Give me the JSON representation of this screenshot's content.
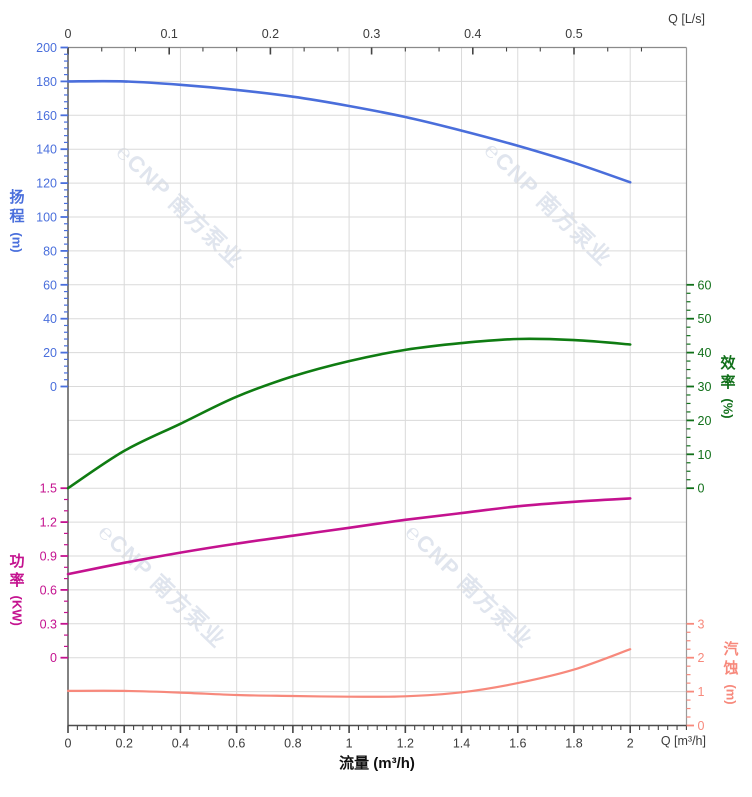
{
  "watermark": {
    "logo": "℮",
    "text": "CNP 南方泵业"
  },
  "chart_data": {
    "type": "line",
    "title": "",
    "x_label": "流量 (m³/h)",
    "x": [
      0,
      0.2,
      0.4,
      0.6,
      0.8,
      1.0,
      1.2,
      1.4,
      1.6,
      1.8,
      2.0
    ],
    "x_range_m3h": [
      0,
      2.2
    ],
    "grid": true,
    "axes": {
      "top": {
        "unit": "Q [L/s]",
        "tick_labels": [
          "0",
          "0.1",
          "0.2",
          "0.3",
          "0.4",
          "0.5"
        ],
        "range": [
          0,
          0.55
        ]
      },
      "bottom": {
        "unit": "Q [m³/h]",
        "title": "流量 (m³/h)",
        "tick_labels": [
          "0",
          "0.2",
          "0.4",
          "0.6",
          "0.8",
          "1",
          "1.2",
          "1.4",
          "1.6",
          "1.8",
          "2"
        ],
        "range": [
          0,
          2.2
        ]
      },
      "head": {
        "title": "扬程",
        "unit": "(m)",
        "color": "#4a6fdc",
        "range": [
          0,
          200
        ],
        "major_step": 20,
        "tick_labels": [
          "0",
          "20",
          "40",
          "60",
          "80",
          "100",
          "120",
          "140",
          "160",
          "180",
          "200"
        ]
      },
      "eff": {
        "title": "效率",
        "unit": "(%)",
        "color": "#11701a",
        "range": [
          0,
          60
        ],
        "major_step": 10,
        "tick_labels": [
          "0",
          "10",
          "20",
          "30",
          "40",
          "50",
          "60"
        ]
      },
      "power": {
        "title": "功率",
        "unit": "(KW)",
        "color": "#c4128f",
        "range": [
          0,
          1.5
        ],
        "major_step": 0.3,
        "tick_labels": [
          "0",
          "0.3",
          "0.6",
          "0.9",
          "1.2",
          "1.5"
        ]
      },
      "npsh": {
        "title": "汽蚀",
        "unit": "(m)",
        "color": "#f7897c",
        "range": [
          0,
          3
        ],
        "major_step": 1,
        "tick_labels": [
          "0",
          "1",
          "2",
          "3"
        ]
      }
    },
    "series": [
      {
        "name": "扬程",
        "axis": "head",
        "color": "#4a6edb",
        "width": 2.6,
        "values": [
          180,
          180,
          178,
          175,
          171,
          165.5,
          159,
          151,
          142,
          132,
          120.5
        ]
      },
      {
        "name": "效率",
        "axis": "eff",
        "color": "#0f7c12",
        "width": 2.6,
        "values": [
          0,
          11,
          19,
          27,
          33,
          37.5,
          40.8,
          42.8,
          44,
          43.7,
          42.4
        ]
      },
      {
        "name": "功率",
        "axis": "power",
        "color": "#c4128f",
        "width": 2.6,
        "values": [
          0.74,
          0.84,
          0.93,
          1.01,
          1.08,
          1.15,
          1.22,
          1.28,
          1.34,
          1.38,
          1.41
        ]
      },
      {
        "name": "汽蚀",
        "axis": "npsh",
        "color": "#f7897c",
        "width": 2.2,
        "values": [
          1.02,
          1.02,
          0.97,
          0.9,
          0.87,
          0.85,
          0.86,
          0.98,
          1.25,
          1.65,
          2.25
        ]
      }
    ]
  }
}
